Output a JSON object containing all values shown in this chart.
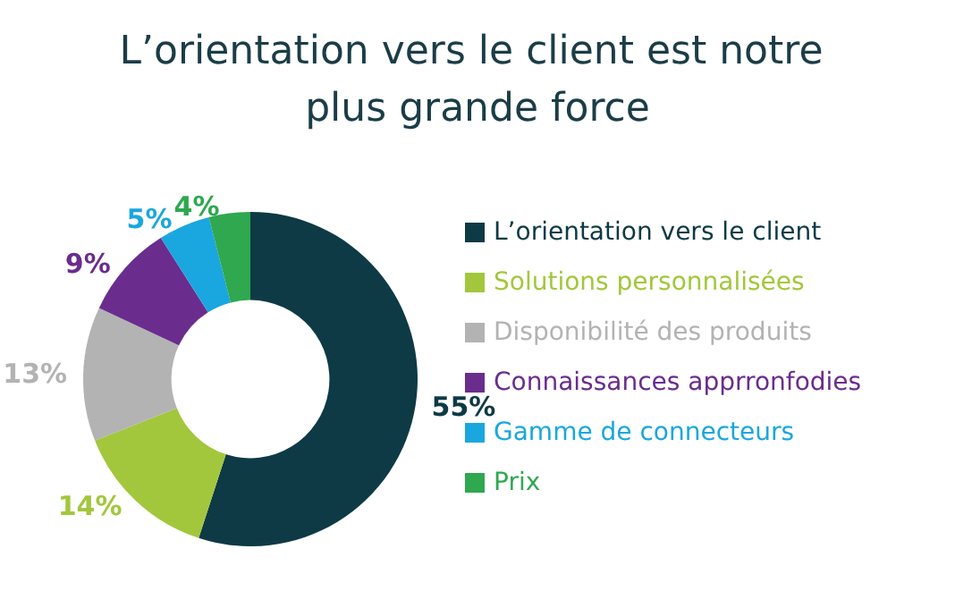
{
  "chart_data": {
    "type": "donut",
    "title": "L’orientation vers le client est notre plus grande force",
    "categories": [
      "L’orientation vers le client",
      "Solutions personnalisées",
      "Disponibilité des produits",
      "Connaissances apprronfodies",
      "Gamme de connecteurs",
      "Prix"
    ],
    "values": [
      55,
      14,
      13,
      9,
      5,
      4
    ],
    "value_labels": [
      "55%",
      "14%",
      "13%",
      "9%",
      "5%",
      "4%"
    ],
    "colors": [
      "#0d3a45",
      "#a3c73c",
      "#b3b3b3",
      "#6a2d8e",
      "#1aa7df",
      "#2fa84f"
    ],
    "legend": "right"
  }
}
